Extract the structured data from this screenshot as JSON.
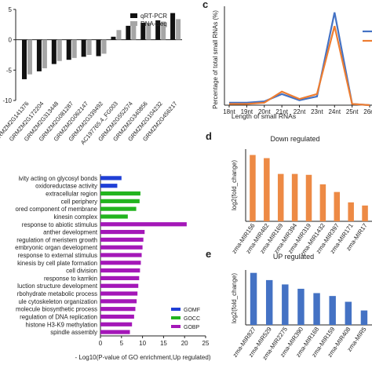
{
  "chart_data": [
    {
      "panel": "",
      "type": "bar",
      "title": "",
      "xlabel": "",
      "ylabel": "",
      "ylim": [
        -10,
        5
      ],
      "yticks": [
        "5",
        "0",
        "-5",
        "-10"
      ],
      "categories": [
        "GRMZM2G141376",
        "GRMZM2G172204",
        "GRMZM2G313448",
        "GRMZM2G081287",
        "GRMZM2G062147",
        "GRMZM2G339492",
        "AC197765.4_FG003",
        "GRMZM2G552574",
        "GRMZM2G340856",
        "GRMZM2G104232",
        "GRMZM2G456217"
      ],
      "series": [
        {
          "name": "qRT-PCR",
          "color": "#111111",
          "values": [
            -6.5,
            -5.2,
            -4.0,
            -3.3,
            -2.8,
            -2.7,
            0.5,
            2.3,
            2.8,
            3.2,
            4.4
          ]
        },
        {
          "name": "RNA-Seq",
          "color": "#a6a6a6",
          "values": [
            -5.7,
            -4.7,
            -3.5,
            -3.0,
            -2.5,
            -2.3,
            1.6,
            2.6,
            2.8,
            3.0,
            3.4
          ]
        }
      ],
      "legend": "top-right"
    },
    {
      "panel": "c",
      "type": "line",
      "title": "",
      "xlabel": "Length of small RNAs",
      "ylabel": "Percentage of total small RNAs (%)",
      "categories": [
        "18nt",
        "19nt",
        "20nt",
        "21nt",
        "22nt",
        "23nt",
        "24nt",
        "25nt",
        "26nt"
      ],
      "ylim": [
        0,
        80
      ],
      "series": [
        {
          "name": "",
          "color": "#4472c4",
          "values": [
            2,
            2,
            3,
            9,
            4,
            7,
            75,
            1,
            0
          ]
        },
        {
          "name": "",
          "color": "#ed7d31",
          "values": [
            1,
            1,
            2,
            11,
            5,
            9,
            64,
            1,
            0
          ]
        }
      ],
      "legend": "top-right"
    },
    {
      "panel": "",
      "type": "bar",
      "orientation": "horizontal",
      "title": "",
      "xlabel": "- Log10(P-value of GO enrichment,Up regulated)",
      "ylabel": "",
      "xlim": [
        0,
        25
      ],
      "xticks": [
        "0",
        "5",
        "10",
        "15",
        "20",
        "25"
      ],
      "categories": [
        "ivity acting on glycosyl bonds",
        "oxidoreductase activity",
        "extracellular region",
        "cell periphery",
        "ored component of membrane",
        "kinesin complex",
        "response to abiotic stimulus",
        "anther development",
        "regulation of meristem growth",
        "embryonic organ development",
        "response to external stimulus",
        "kinesis by cell plate formation",
        "cell division",
        "response to karrikin",
        "luction structure development",
        "rbohydrate metabolic process",
        "ule cytoskeleton organization",
        "molecule biosynthetic process",
        "regulation of DNA replication",
        "histone H3-K9 methylation",
        "spindle assembly"
      ],
      "values": [
        5.0,
        4.0,
        9.5,
        9.3,
        8.5,
        6.5,
        20.5,
        10.5,
        10.2,
        10.0,
        9.8,
        9.6,
        9.4,
        9.2,
        9.0,
        8.8,
        8.6,
        8.3,
        8.0,
        7.5,
        7.0
      ],
      "groups": [
        "GOMF",
        "GOMF",
        "GOCC",
        "GOCC",
        "GOCC",
        "GOCC",
        "GOBP",
        "GOBP",
        "GOBP",
        "GOBP",
        "GOBP",
        "GOBP",
        "GOBP",
        "GOBP",
        "GOBP",
        "GOBP",
        "GOBP",
        "GOBP",
        "GOBP",
        "GOBP",
        "GOBP"
      ],
      "legend_entries": [
        {
          "name": "GOMF",
          "color": "#1f3fd6"
        },
        {
          "name": "GOCC",
          "color": "#22b41e"
        },
        {
          "name": "GOBP",
          "color": "#a417b8"
        }
      ],
      "legend": "bottom-right"
    },
    {
      "panel": "d",
      "type": "bar",
      "title": "Down regulated",
      "xlabel": "",
      "ylabel": "log2(fold_change)",
      "color": "#ed8a45",
      "categories": [
        "zma-MIR156",
        "zma-MIR482",
        "zma-MIR169",
        "zma-MIR394",
        "zma-MIR319",
        "zma-MIR1432",
        "zma-MIR397",
        "zma-MIR171",
        "zma-MIR17"
      ],
      "values": [
        14.7,
        14.0,
        10.5,
        10.5,
        10.3,
        8.2,
        6.5,
        4.2,
        3.5
      ]
    },
    {
      "panel": "e",
      "type": "bar",
      "title": "UP regulated",
      "xlabel": "",
      "ylabel": "log2(fold_change)",
      "color": "#4472c4",
      "categories": [
        "zma-MIR827",
        "zma-MIR529",
        "zma-MIR2275",
        "zma-MIR390",
        "zma-MIR168",
        "zma-MIR159",
        "zma-MIR408",
        "zma-MIR5"
      ],
      "values": [
        18.0,
        15.5,
        14.0,
        12.5,
        11.0,
        10.0,
        8.0,
        5.0
      ]
    }
  ]
}
